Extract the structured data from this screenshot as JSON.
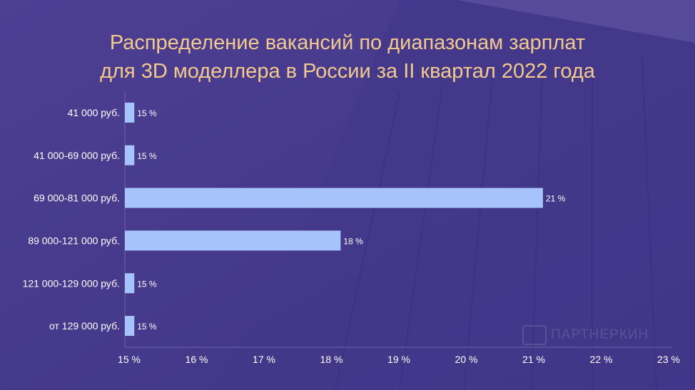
{
  "title_lines": [
    "Распределение вакансий по диапазонам зарплат",
    "для 3D моделлера в России за II квартал 2022 года"
  ],
  "watermark": "ПАРТНЕРКИН",
  "colors": {
    "background": "#4a3d8e",
    "bar": "#a6c4fb",
    "title": "#f3c98c",
    "text": "#ffffff"
  },
  "chart_data": {
    "type": "bar",
    "orientation": "horizontal",
    "title": "Распределение вакансий по диапазонам зарплат для 3D моделлера в России за II квартал 2022 года",
    "categories": [
      "41 000 руб.",
      "41 000-69 000 руб.",
      "69 000-81 000 руб.",
      "89 000-121 000 руб.",
      "121 000-129 000 руб.",
      "от 129 000 руб."
    ],
    "values": [
      15.14,
      15.14,
      21.2,
      18.2,
      15.14,
      15.14
    ],
    "data_labels": [
      "15 %",
      "15 %",
      "21 %",
      "18 %",
      "15 %",
      "15 %"
    ],
    "xlim": [
      15,
      23
    ],
    "xticks": [
      "15 %",
      "16 %",
      "17 %",
      "18 %",
      "19 %",
      "20 %",
      "21 %",
      "22 %",
      "23 %"
    ],
    "xlabel": "",
    "ylabel": "",
    "grid": false
  }
}
